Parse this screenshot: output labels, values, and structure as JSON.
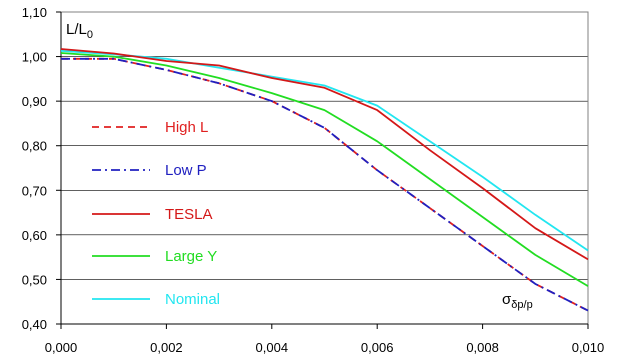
{
  "chart_data": {
    "type": "line",
    "title": "",
    "ylabel_main": "L/L",
    "ylabel_sub": "0",
    "xlabel_main": "σ",
    "xlabel_sub": "δp/p",
    "xlim": [
      0,
      0.01
    ],
    "ylim": [
      0.4,
      1.1
    ],
    "grid": "horizontal",
    "legend_position": "left",
    "x_ticks": [
      "0,000",
      "0,002",
      "0,004",
      "0,006",
      "0,008",
      "0,010"
    ],
    "x_tick_values": [
      0,
      0.002,
      0.004,
      0.006,
      0.008,
      0.01
    ],
    "y_ticks": [
      "0,40",
      "0,50",
      "0,60",
      "0,70",
      "0,80",
      "0,90",
      "1,00",
      "1,10"
    ],
    "y_tick_values": [
      0.4,
      0.5,
      0.6,
      0.7,
      0.8,
      0.9,
      1.0,
      1.1
    ],
    "x": [
      0,
      0.001,
      0.002,
      0.003,
      0.004,
      0.005,
      0.006,
      0.007,
      0.008,
      0.009,
      0.01
    ],
    "series": [
      {
        "name": "High L",
        "color": "#e02020",
        "dash": "dash",
        "values": [
          0.995,
          0.995,
          0.97,
          0.94,
          0.9,
          0.84,
          0.745,
          0.66,
          0.575,
          0.49,
          0.43
        ]
      },
      {
        "name": "Low P",
        "color": "#2020c0",
        "dash": "dashdot",
        "values": [
          0.995,
          0.995,
          0.97,
          0.94,
          0.9,
          0.84,
          0.745,
          0.66,
          0.575,
          0.49,
          0.43
        ]
      },
      {
        "name": "TESLA",
        "color": "#d41818",
        "dash": "solid",
        "values": [
          1.017,
          1.007,
          0.99,
          0.98,
          0.952,
          0.93,
          0.88,
          0.79,
          0.705,
          0.615,
          0.545
        ]
      },
      {
        "name": "Large Y",
        "color": "#22dd22",
        "dash": "solid",
        "values": [
          1.008,
          1.0,
          0.98,
          0.952,
          0.918,
          0.88,
          0.81,
          0.725,
          0.64,
          0.555,
          0.485
        ]
      },
      {
        "name": "Nominal",
        "color": "#22e6f0",
        "dash": "solid",
        "values": [
          1.013,
          1.005,
          0.995,
          0.975,
          0.955,
          0.935,
          0.89,
          0.81,
          0.73,
          0.645,
          0.565
        ]
      }
    ]
  }
}
